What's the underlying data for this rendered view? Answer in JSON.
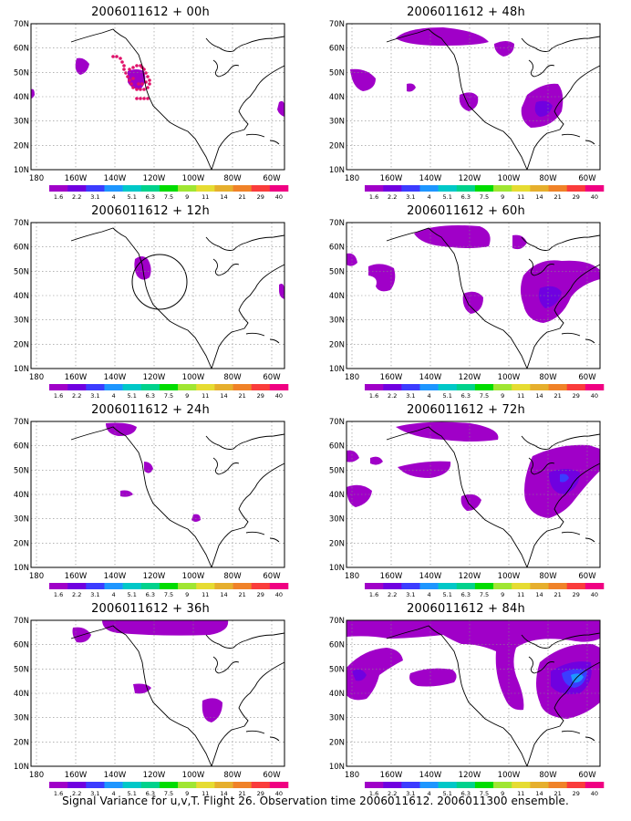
{
  "footer": "Signal Variance for u,v,T. Flight 26. Observation time 2006011612. 2006011300 ensemble.",
  "colorbar": {
    "labels": [
      "1.6",
      "2.2",
      "3.1",
      "4",
      "5.1",
      "6.3",
      "7.5",
      "9",
      "11",
      "14",
      "21",
      "29",
      "40"
    ],
    "colors": [
      "#a000c8",
      "#7000e0",
      "#3c3cff",
      "#1e96ff",
      "#00c8c8",
      "#00d28c",
      "#00dc00",
      "#a0e632",
      "#e6dc32",
      "#e6af2d",
      "#f08228",
      "#fa3c3c",
      "#f00082"
    ]
  },
  "axes": {
    "lon_labels": [
      "180",
      "160W",
      "140W",
      "120W",
      "100W",
      "80W",
      "60W"
    ],
    "lat_labels": [
      "70N",
      "60N",
      "50N",
      "40N",
      "30N",
      "20N",
      "10N"
    ]
  },
  "panels": [
    {
      "title": "2006011612 + 00h"
    },
    {
      "title": "2006011612 + 48h"
    },
    {
      "title": "2006011612 + 12h"
    },
    {
      "title": "2006011612 + 60h"
    },
    {
      "title": "2006011612 + 24h"
    },
    {
      "title": "2006011612 + 72h"
    },
    {
      "title": "2006011612 + 36h"
    },
    {
      "title": "2006011612 + 84h"
    }
  ]
}
